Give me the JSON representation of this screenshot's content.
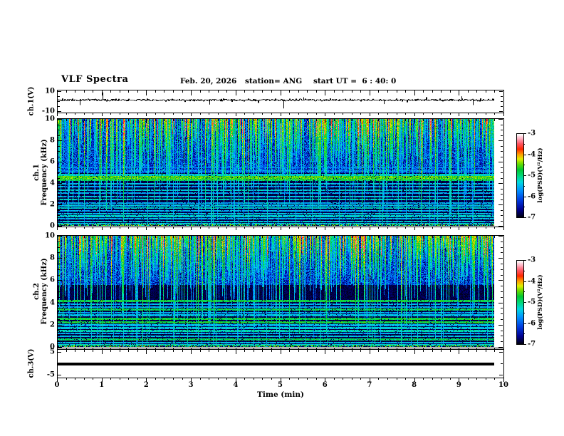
{
  "header": {
    "title": "VLF Spectra",
    "date": "Feb. 20, 2026",
    "station": "station= ANG",
    "start_ut": "start UT =  6 : 40: 0"
  },
  "time_axis": {
    "label": "Time (min)",
    "tick_labels": [
      "0",
      "1",
      "2",
      "3",
      "4",
      "5",
      "6",
      "7",
      "8",
      "9",
      "10"
    ],
    "tick_values": [
      0,
      1,
      2,
      3,
      4,
      5,
      6,
      7,
      8,
      9,
      10
    ],
    "minor_step": 0.2,
    "range": [
      0,
      10
    ],
    "data_end": 9.78
  },
  "panels": {
    "ch1_wave": {
      "ylabel": "ch.1(V)",
      "ytick_labels": [
        "10",
        "-10"
      ],
      "ytick_values": [
        10,
        -10
      ],
      "yminor_values": [
        5,
        0,
        -5
      ],
      "ylim": [
        -11,
        11
      ]
    },
    "spec1": {
      "ylabel_line1": "ch.1",
      "ylabel_line2": "Frequency (kHz)",
      "ytick_labels": [
        "10",
        "8",
        "6",
        "4",
        "2",
        "0"
      ],
      "ytick_values": [
        10,
        8,
        6,
        4,
        2,
        0
      ],
      "minor_step": 0.5,
      "ylim": [
        0,
        10
      ]
    },
    "spec2": {
      "ylabel_line1": "ch.2",
      "ylabel_line2": "Frequency (kHz)",
      "ytick_labels": [
        "10",
        "8",
        "6",
        "4",
        "2",
        "0"
      ],
      "ytick_values": [
        10,
        8,
        6,
        4,
        2,
        0
      ],
      "minor_step": 0.5,
      "ylim": [
        0,
        10
      ]
    },
    "ch3_wave": {
      "ylabel": "ch.3(V)",
      "ytick_labels": [
        "5",
        "-5"
      ],
      "ytick_values": [
        5,
        -5
      ],
      "yminor_values": [
        0
      ],
      "ylim": [
        -6,
        6
      ]
    }
  },
  "colorbars": [
    {
      "label": "log(PSD)(V²/Hz)",
      "tick_labels": [
        "-3",
        "-4",
        "-5",
        "-6",
        "-7"
      ],
      "tick_values": [
        -3,
        -4,
        -5,
        -6,
        -7
      ],
      "range": [
        -7,
        -3
      ]
    },
    {
      "label": "log(PSD)(V²/Hz)",
      "tick_labels": [
        "-3",
        "-4",
        "-5",
        "-6",
        "-7"
      ],
      "tick_values": [
        -3,
        -4,
        -5,
        -6,
        -7
      ],
      "range": [
        -7,
        -3
      ]
    }
  ],
  "colormap": {
    "stops": [
      [
        0,
        "#000014"
      ],
      [
        0.09,
        "#000090"
      ],
      [
        0.2,
        "#0038dd"
      ],
      [
        0.32,
        "#0090ff"
      ],
      [
        0.42,
        "#00d8e0"
      ],
      [
        0.5,
        "#00d878"
      ],
      [
        0.57,
        "#00c832"
      ],
      [
        0.64,
        "#66dc00"
      ],
      [
        0.7,
        "#e0ee00"
      ],
      [
        0.76,
        "#ff9800"
      ],
      [
        0.82,
        "#ff2800"
      ],
      [
        0.89,
        "#ff5a6a"
      ],
      [
        0.95,
        "#ffb4c4"
      ],
      [
        1,
        "#ffffff"
      ]
    ]
  },
  "chart_data": [
    {
      "type": "line",
      "name": "ch1-voltage-waveform",
      "ylabel": "ch.1(V)",
      "xlabel": "Time (min)",
      "xlim": [
        0,
        10
      ],
      "ylim": [
        -10,
        10
      ],
      "baseline": 1.4,
      "noise_amp": 0.8,
      "spikes": [
        {
          "t": 0.5,
          "v": -4
        },
        {
          "t": 1.0,
          "v": 9
        },
        {
          "t": 3.4,
          "v": -3.5
        },
        {
          "t": 5.06,
          "v": -7.5
        },
        {
          "t": 5.5,
          "v": 4
        },
        {
          "t": 7.3,
          "v": -3
        },
        {
          "t": 9.05,
          "v": 5
        },
        {
          "t": 9.3,
          "v": -4
        }
      ],
      "seed": 20
    },
    {
      "type": "heatmap",
      "name": "ch1-spectrogram",
      "ylabel": "ch.1 Frequency (kHz)",
      "xlabel": "Time (min)",
      "xlim": [
        0,
        10
      ],
      "ylim": [
        0,
        10
      ],
      "value_range": [
        -7,
        -3
      ],
      "streak_min_freq": 4.9,
      "streak_density": 0.62,
      "vline_density": 0.028,
      "seed": 7,
      "bands": [
        {
          "f": 5.45,
          "amp": -5.9,
          "w": 0.08
        },
        {
          "f": 5.15,
          "amp": -5.8,
          "w": 0.07
        },
        {
          "f": 4.75,
          "amp": -5.3,
          "w": 0.09
        },
        {
          "f": 4.5,
          "amp": -4.55,
          "w": 0.14
        },
        {
          "f": 4.3,
          "amp": -4.9,
          "w": 0.08
        },
        {
          "f": 3.95,
          "amp": -5.45,
          "w": 0.07
        },
        {
          "f": 3.65,
          "amp": -5.6,
          "w": 0.07
        },
        {
          "f": 3.35,
          "amp": -5.35,
          "w": 0.07
        },
        {
          "f": 3.05,
          "amp": -5.55,
          "w": 0.07
        },
        {
          "f": 2.75,
          "amp": -5.4,
          "w": 0.07
        },
        {
          "f": 2.45,
          "amp": -5.25,
          "w": 0.08
        },
        {
          "f": 2.15,
          "amp": -5.55,
          "w": 0.07
        },
        {
          "f": 1.9,
          "amp": -5.45,
          "w": 0.07
        },
        {
          "f": 1.65,
          "amp": -5.3,
          "w": 0.07
        },
        {
          "f": 1.4,
          "amp": -5.55,
          "w": 0.07
        },
        {
          "f": 1.15,
          "amp": -5.4,
          "w": 0.07
        },
        {
          "f": 0.9,
          "amp": -5.3,
          "w": 0.08
        },
        {
          "f": 0.65,
          "amp": -5.5,
          "w": 0.07
        },
        {
          "f": 0.4,
          "amp": -5.35,
          "w": 0.07
        },
        {
          "f": 0.18,
          "amp": -5.45,
          "w": 0.06
        }
      ]
    },
    {
      "type": "heatmap",
      "name": "ch2-spectrogram",
      "ylabel": "ch.2 Frequency (kHz)",
      "xlabel": "Time (min)",
      "xlim": [
        0,
        10
      ],
      "ylim": [
        0,
        10
      ],
      "value_range": [
        -7,
        -3
      ],
      "streak_min_freq": 5.6,
      "streak_density": 0.7,
      "vline_density": 0.03,
      "seed": 13,
      "bands": [
        {
          "f": 4.15,
          "amp": -4.8,
          "w": 0.1
        },
        {
          "f": 3.85,
          "amp": -5.5,
          "w": 0.07
        },
        {
          "f": 3.6,
          "amp": -5.6,
          "w": 0.07
        },
        {
          "f": 3.35,
          "amp": -4.85,
          "w": 0.09
        },
        {
          "f": 3.1,
          "amp": -5.55,
          "w": 0.07
        },
        {
          "f": 2.85,
          "amp": -5.45,
          "w": 0.07
        },
        {
          "f": 2.55,
          "amp": -4.8,
          "w": 0.09
        },
        {
          "f": 2.2,
          "amp": -4.75,
          "w": 0.09
        },
        {
          "f": 1.95,
          "amp": -5.5,
          "w": 0.07
        },
        {
          "f": 1.7,
          "amp": -5.35,
          "w": 0.07
        },
        {
          "f": 1.45,
          "amp": -5.2,
          "w": 0.08
        },
        {
          "f": 1.2,
          "amp": -5.5,
          "w": 0.07
        },
        {
          "f": 0.95,
          "amp": -5.4,
          "w": 0.07
        },
        {
          "f": 0.65,
          "amp": -4.9,
          "w": 0.09
        },
        {
          "f": 0.4,
          "amp": -5.45,
          "w": 0.07
        },
        {
          "f": 0.18,
          "amp": -5.3,
          "w": 0.06
        }
      ]
    },
    {
      "type": "line",
      "name": "ch3-voltage-waveform",
      "ylabel": "ch.3(V)",
      "xlabel": "Time (min)",
      "xlim": [
        0,
        10
      ],
      "ylim": [
        -5,
        5
      ],
      "value": -0.3,
      "line_thickness_px": 4
    }
  ]
}
